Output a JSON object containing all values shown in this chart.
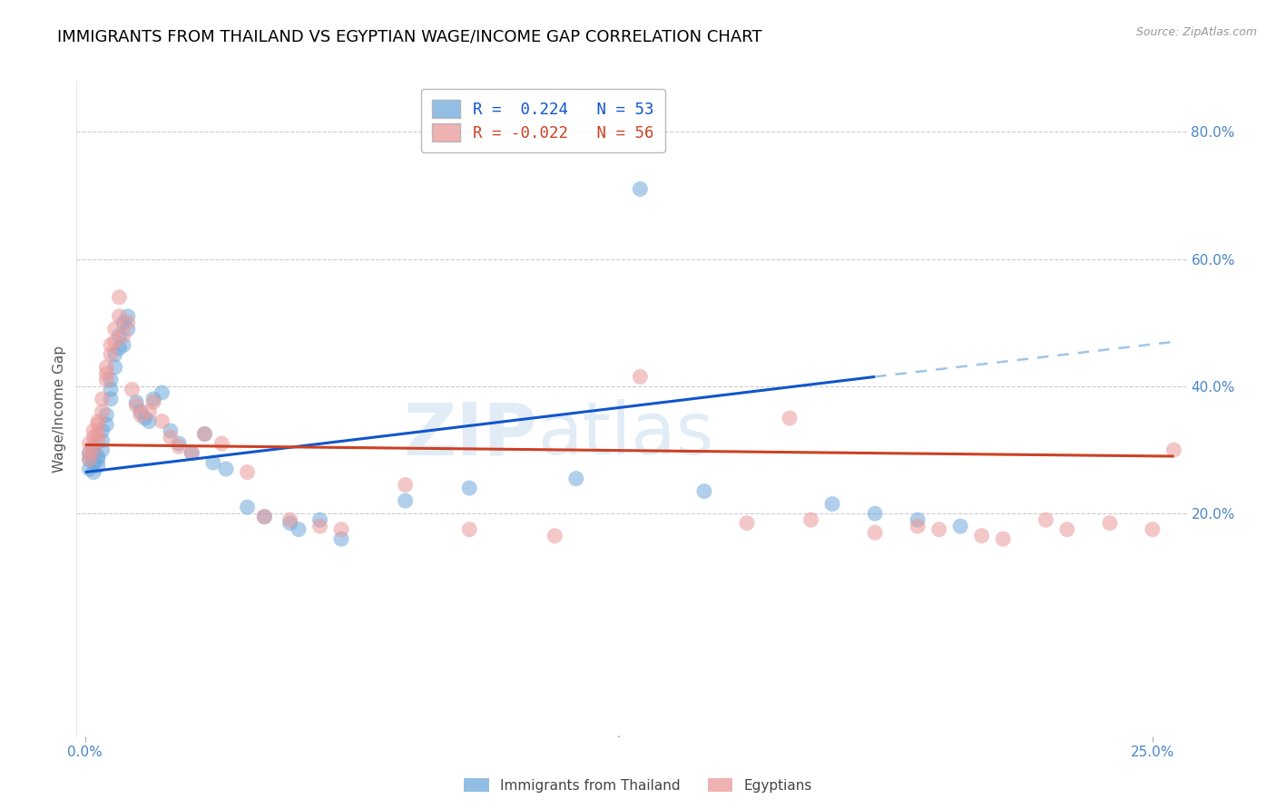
{
  "title": "IMMIGRANTS FROM THAILAND VS EGYPTIAN WAGE/INCOME GAP CORRELATION CHART",
  "source": "Source: ZipAtlas.com",
  "ylabel": "Wage/Income Gap",
  "right_yticks": [
    0.2,
    0.4,
    0.6,
    0.8
  ],
  "right_yticklabels": [
    "20.0%",
    "40.0%",
    "60.0%",
    "80.0%"
  ],
  "color_thailand": "#6fa8dc",
  "color_egypt": "#ea9999",
  "trendline_thailand_color": "#1155cc",
  "trendline_egypt_color": "#cc4125",
  "trendline_extend_color": "#9fc5e8",
  "background_color": "#ffffff",
  "title_color": "#000000",
  "title_fontsize": 13,
  "tick_color": "#4a86c8",
  "grid_color": "#cccccc",
  "watermark_zip": "ZIP",
  "watermark_atlas": "atlas",
  "thai_trendline_x0": 0.0,
  "thai_trendline_y0": 0.265,
  "thai_trendline_x1": 0.185,
  "thai_trendline_y1": 0.415,
  "thai_trendline_ext_x1": 0.255,
  "thai_trendline_ext_y1": 0.47,
  "egy_trendline_x0": 0.0,
  "egy_trendline_y0": 0.308,
  "egy_trendline_x1": 0.255,
  "egy_trendline_y1": 0.29,
  "ymin": -0.15,
  "ymax": 0.88,
  "xmin": -0.002,
  "xmax": 0.258,
  "thailand_scatter_x": [
    0.001,
    0.001,
    0.001,
    0.002,
    0.002,
    0.002,
    0.002,
    0.003,
    0.003,
    0.003,
    0.004,
    0.004,
    0.004,
    0.005,
    0.005,
    0.006,
    0.006,
    0.006,
    0.007,
    0.007,
    0.008,
    0.008,
    0.009,
    0.009,
    0.01,
    0.01,
    0.012,
    0.013,
    0.014,
    0.015,
    0.016,
    0.018,
    0.02,
    0.022,
    0.025,
    0.028,
    0.03,
    0.033,
    0.038,
    0.042,
    0.048,
    0.05,
    0.055,
    0.06,
    0.075,
    0.09,
    0.115,
    0.13,
    0.145,
    0.175,
    0.185,
    0.195,
    0.205
  ],
  "thailand_scatter_y": [
    0.285,
    0.295,
    0.27,
    0.3,
    0.28,
    0.265,
    0.305,
    0.29,
    0.275,
    0.285,
    0.33,
    0.315,
    0.3,
    0.34,
    0.355,
    0.41,
    0.395,
    0.38,
    0.45,
    0.43,
    0.46,
    0.48,
    0.5,
    0.465,
    0.51,
    0.49,
    0.375,
    0.36,
    0.35,
    0.345,
    0.38,
    0.39,
    0.33,
    0.31,
    0.295,
    0.325,
    0.28,
    0.27,
    0.21,
    0.195,
    0.185,
    0.175,
    0.19,
    0.16,
    0.22,
    0.24,
    0.255,
    0.71,
    0.235,
    0.215,
    0.2,
    0.19,
    0.18
  ],
  "egypt_scatter_x": [
    0.001,
    0.001,
    0.001,
    0.002,
    0.002,
    0.002,
    0.003,
    0.003,
    0.003,
    0.003,
    0.004,
    0.004,
    0.005,
    0.005,
    0.005,
    0.006,
    0.006,
    0.007,
    0.007,
    0.008,
    0.008,
    0.009,
    0.01,
    0.011,
    0.012,
    0.013,
    0.015,
    0.016,
    0.018,
    0.02,
    0.022,
    0.025,
    0.028,
    0.032,
    0.038,
    0.042,
    0.048,
    0.055,
    0.06,
    0.075,
    0.09,
    0.11,
    0.13,
    0.155,
    0.17,
    0.195,
    0.21,
    0.225,
    0.165,
    0.185,
    0.2,
    0.215,
    0.23,
    0.24,
    0.25,
    0.255
  ],
  "egypt_scatter_y": [
    0.295,
    0.31,
    0.285,
    0.32,
    0.3,
    0.33,
    0.34,
    0.325,
    0.315,
    0.345,
    0.38,
    0.36,
    0.41,
    0.43,
    0.42,
    0.45,
    0.465,
    0.47,
    0.49,
    0.51,
    0.54,
    0.48,
    0.5,
    0.395,
    0.37,
    0.355,
    0.36,
    0.375,
    0.345,
    0.32,
    0.305,
    0.295,
    0.325,
    0.31,
    0.265,
    0.195,
    0.19,
    0.18,
    0.175,
    0.245,
    0.175,
    0.165,
    0.415,
    0.185,
    0.19,
    0.18,
    0.165,
    0.19,
    0.35,
    0.17,
    0.175,
    0.16,
    0.175,
    0.185,
    0.175,
    0.3
  ]
}
